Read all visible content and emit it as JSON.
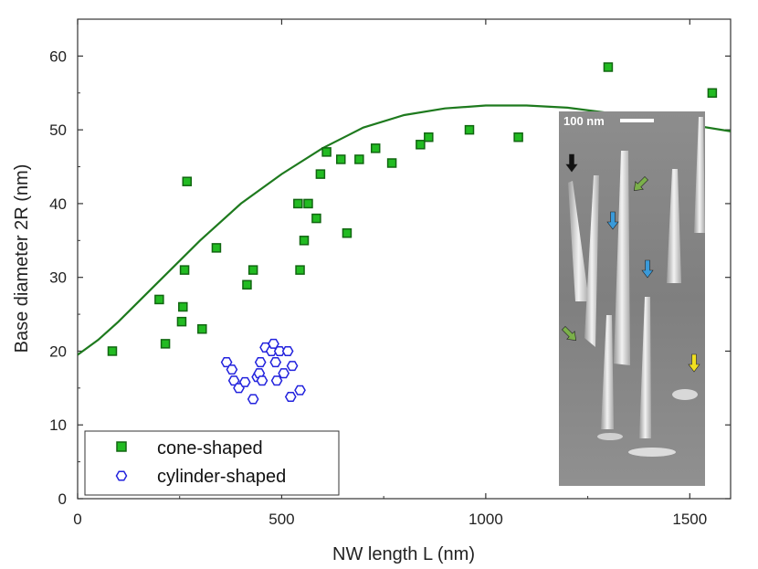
{
  "chart_data": {
    "type": "scatter",
    "xlabel": "NW length L (nm)",
    "ylabel": "Base diameter 2R (nm)",
    "xlim": [
      0,
      1600
    ],
    "ylim": [
      0,
      65
    ],
    "x_ticks": [
      0,
      500,
      1000,
      1500
    ],
    "y_ticks": [
      0,
      10,
      20,
      30,
      40,
      50,
      60
    ],
    "grid": false,
    "legend_position": "bottom-left",
    "series": [
      {
        "name": "cone-shaped",
        "marker": "square",
        "color": "#22bb22",
        "points": [
          [
            85,
            20
          ],
          [
            200,
            27
          ],
          [
            215,
            21
          ],
          [
            255,
            24
          ],
          [
            258,
            26
          ],
          [
            262,
            31
          ],
          [
            268,
            43
          ],
          [
            305,
            23
          ],
          [
            340,
            34
          ],
          [
            415,
            29
          ],
          [
            430,
            31
          ],
          [
            540,
            40
          ],
          [
            545,
            31
          ],
          [
            555,
            35
          ],
          [
            565,
            40
          ],
          [
            585,
            38
          ],
          [
            595,
            44
          ],
          [
            610,
            47
          ],
          [
            645,
            46
          ],
          [
            660,
            36
          ],
          [
            690,
            46
          ],
          [
            730,
            47.5
          ],
          [
            770,
            45.5
          ],
          [
            840,
            48
          ],
          [
            860,
            49
          ],
          [
            960,
            50
          ],
          [
            1080,
            49
          ],
          [
            1300,
            58.5
          ],
          [
            1555,
            55
          ]
        ]
      },
      {
        "name": "cylinder-shaped",
        "marker": "hexagon",
        "color": "#2222dd",
        "points": [
          [
            365,
            18.5
          ],
          [
            378,
            17.5
          ],
          [
            383,
            16
          ],
          [
            395,
            15
          ],
          [
            410,
            15.8
          ],
          [
            430,
            13.5
          ],
          [
            440,
            16.5
          ],
          [
            445,
            17
          ],
          [
            448,
            18.5
          ],
          [
            452,
            16
          ],
          [
            460,
            20.5
          ],
          [
            475,
            20
          ],
          [
            480,
            21
          ],
          [
            485,
            18.5
          ],
          [
            488,
            16
          ],
          [
            495,
            20
          ],
          [
            505,
            17
          ],
          [
            515,
            20
          ],
          [
            522,
            13.8
          ],
          [
            526,
            18
          ],
          [
            545,
            14.7
          ]
        ]
      }
    ],
    "fit_curve": {
      "color": "#1e7a1e",
      "points": [
        [
          0,
          19.5
        ],
        [
          50,
          21.5
        ],
        [
          100,
          24
        ],
        [
          200,
          29.5
        ],
        [
          300,
          35
        ],
        [
          400,
          40
        ],
        [
          500,
          44
        ],
        [
          600,
          47.5
        ],
        [
          700,
          50.3
        ],
        [
          800,
          52
        ],
        [
          900,
          52.9
        ],
        [
          1000,
          53.3
        ],
        [
          1100,
          53.3
        ],
        [
          1200,
          53
        ],
        [
          1300,
          52.3
        ],
        [
          1400,
          51.5
        ],
        [
          1500,
          50.7
        ],
        [
          1600,
          49.8
        ]
      ]
    },
    "inset": {
      "scale_bar_label": "100 nm",
      "arrows": [
        {
          "color": "#111111",
          "direction": "down"
        },
        {
          "color": "#7bb04a",
          "direction": "down-left"
        },
        {
          "color": "#3a9ad9",
          "direction": "down"
        },
        {
          "color": "#3a9ad9",
          "direction": "down"
        },
        {
          "color": "#7bb04a",
          "direction": "down-right"
        },
        {
          "color": "#f0e020",
          "direction": "down"
        }
      ]
    }
  }
}
